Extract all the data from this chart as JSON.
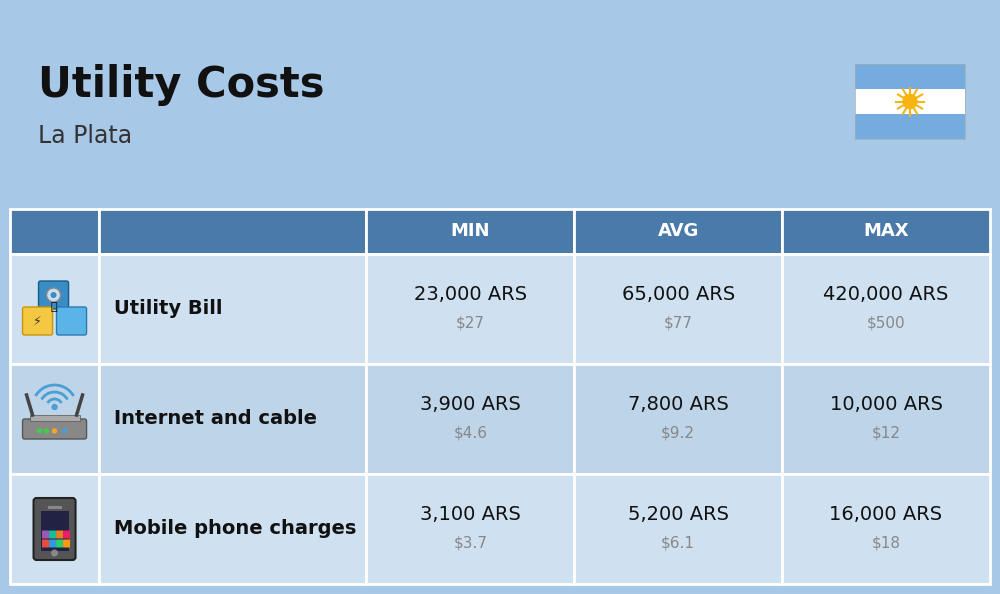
{
  "title": "Utility Costs",
  "subtitle": "La Plata",
  "background_color": "#a8c8e8",
  "header_bg_color": "#4a7aaa",
  "header_text_color": "#ffffff",
  "row_bg_colors": [
    "#cfe0f0",
    "#bed4e8",
    "#cfe0f0"
  ],
  "table_border_color": "#ffffff",
  "col_headers": [
    "",
    "",
    "MIN",
    "AVG",
    "MAX"
  ],
  "rows": [
    {
      "label": "Utility Bill",
      "min_ars": "23,000 ARS",
      "min_usd": "$27",
      "avg_ars": "65,000 ARS",
      "avg_usd": "$77",
      "max_ars": "420,000 ARS",
      "max_usd": "$500",
      "icon": "utility"
    },
    {
      "label": "Internet and cable",
      "min_ars": "3,900 ARS",
      "min_usd": "$4.6",
      "avg_ars": "7,800 ARS",
      "avg_usd": "$9.2",
      "max_ars": "10,000 ARS",
      "max_usd": "$12",
      "icon": "internet"
    },
    {
      "label": "Mobile phone charges",
      "min_ars": "3,100 ARS",
      "min_usd": "$3.7",
      "avg_ars": "5,200 ARS",
      "avg_usd": "$6.1",
      "max_ars": "16,000 ARS",
      "max_usd": "$18",
      "icon": "mobile"
    }
  ],
  "title_fontsize": 30,
  "subtitle_fontsize": 17,
  "header_fontsize": 13,
  "cell_ars_fontsize": 14,
  "cell_usd_fontsize": 11,
  "label_fontsize": 14,
  "flag_stripe_colors": [
    "#74ACDF",
    "#FFFFFF",
    "#74ACDF"
  ],
  "flag_sun_color": "#F6B40E"
}
